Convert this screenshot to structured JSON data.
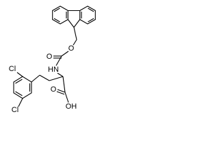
{
  "atoms": {
    "cl_top": "Cl",
    "cl_bottom": "Cl",
    "nh": "HN",
    "ether_o": "O",
    "carbonyl_o": "O",
    "acid_o": "O",
    "acid_oh": "OH"
  }
}
